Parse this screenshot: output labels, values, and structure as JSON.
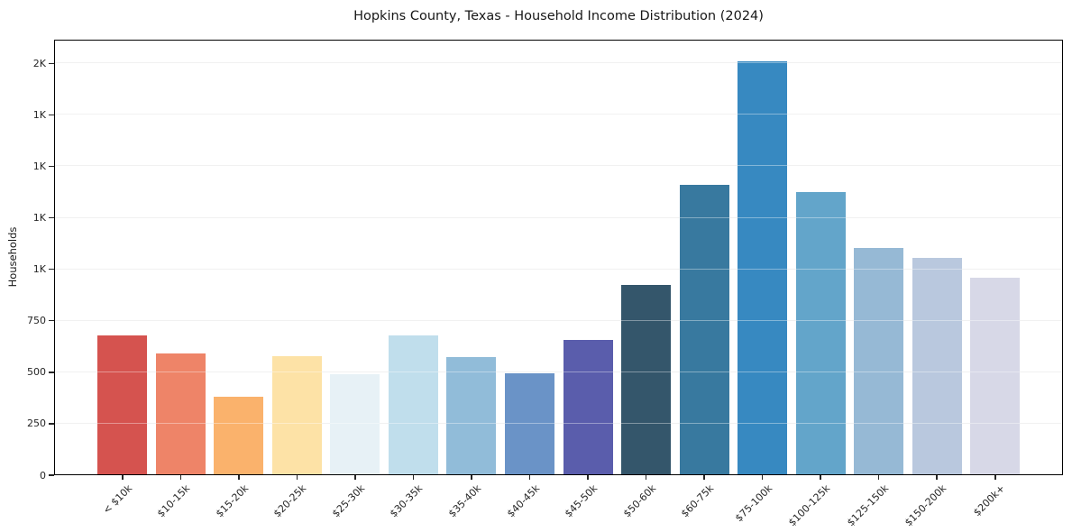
{
  "chart_data": {
    "type": "bar",
    "title": "Hopkins County, Texas - Household Income Distribution (2024)",
    "xlabel": "",
    "ylabel": "Households",
    "categories": [
      "< $10k",
      "$10-15k",
      "$15-20k",
      "$20-25k",
      "$25-30k",
      "$30-35k",
      "$35-40k",
      "$40-45k",
      "$45-50k",
      "$50-60k",
      "$60-75k",
      "$75-100k",
      "$100-125k",
      "$125-150k",
      "$150-200k",
      "$200k+"
    ],
    "values": [
      680,
      590,
      383,
      578,
      490,
      680,
      573,
      494,
      655,
      925,
      1410,
      2010,
      1375,
      1105,
      1055,
      958
    ],
    "bar_colors": [
      "#d5534f",
      "#ee8468",
      "#fab26c",
      "#fde2a6",
      "#e7f1f6",
      "#c0deec",
      "#91bcd9",
      "#6a93c7",
      "#5a5dac",
      "#34566b",
      "#38799f",
      "#3789c1",
      "#63a5ca",
      "#96b9d5",
      "#b9c8de",
      "#d7d8e7"
    ],
    "ylim": [
      0,
      2115
    ],
    "yticks": [
      {
        "v": 0,
        "label": "0"
      },
      {
        "v": 250,
        "label": "250"
      },
      {
        "v": 500,
        "label": "500"
      },
      {
        "v": 750,
        "label": "750"
      },
      {
        "v": 1000,
        "label": "1K"
      },
      {
        "v": 1250,
        "label": "1K"
      },
      {
        "v": 1500,
        "label": "1K"
      },
      {
        "v": 1750,
        "label": "1K"
      },
      {
        "v": 2000,
        "label": "2K"
      }
    ],
    "grid": true,
    "legend": false,
    "grid_color": "#e9e9e9",
    "axis_color": "#000000",
    "background_color": "#ffffff"
  }
}
